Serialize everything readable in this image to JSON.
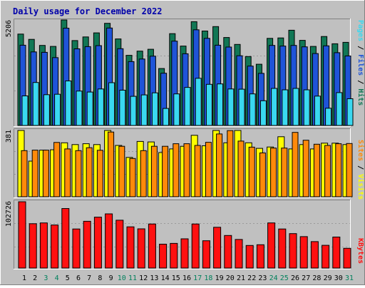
{
  "chart_data": [
    {
      "type": "bar",
      "title": "Daily usage for December 2022",
      "categories": [
        "1",
        "2",
        "3",
        "4",
        "5",
        "6",
        "7",
        "8",
        "9",
        "10",
        "11",
        "12",
        "13",
        "14",
        "15",
        "16",
        "17",
        "18",
        "19",
        "20",
        "21",
        "22",
        "23",
        "24",
        "25",
        "26",
        "27",
        "28",
        "29",
        "30",
        "31"
      ],
      "weekend_days": [
        "3",
        "4",
        "10",
        "11",
        "17",
        "18",
        "24",
        "25",
        "31"
      ],
      "ymax_label": "5206",
      "ylabel": {
        "pages": "Pages",
        "sep1": " / ",
        "files": "Files",
        "sep2": " / ",
        "hits": "Hits"
      },
      "series": [
        {
          "name": "Hits",
          "color": "#117755",
          "values": [
            4510,
            4250,
            3950,
            3900,
            5206,
            4190,
            4370,
            4570,
            5040,
            4270,
            3460,
            3670,
            3760,
            2810,
            4530,
            3920,
            5120,
            4660,
            4880,
            4340,
            4000,
            3400,
            3020,
            4300,
            4320,
            4700,
            4200,
            3900,
            4390,
            4030,
            4100
          ]
        },
        {
          "name": "Files",
          "color": "#1f54d8",
          "values": [
            3960,
            3630,
            3610,
            3350,
            4800,
            3780,
            3890,
            3940,
            4810,
            3790,
            3150,
            3280,
            3420,
            2580,
            4160,
            3540,
            4720,
            4300,
            3960,
            3870,
            3440,
            2930,
            2570,
            3950,
            3920,
            3950,
            3880,
            3550,
            3930,
            3590,
            3430
          ]
        },
        {
          "name": "Pages",
          "color": "#3ad8f0",
          "values": [
            1460,
            2120,
            1520,
            1540,
            2200,
            1700,
            1650,
            1800,
            2110,
            1740,
            1440,
            1510,
            1610,
            840,
            1560,
            1880,
            2330,
            2030,
            2050,
            1800,
            1790,
            1560,
            1220,
            1830,
            1760,
            1830,
            1760,
            1450,
            850,
            1620,
            1320
          ]
        }
      ]
    },
    {
      "type": "bar",
      "ymax_label": "381",
      "ylabel": {
        "sites": "Sites",
        "sep": " / ",
        "visits": "Visits"
      },
      "series": [
        {
          "name": "Visits",
          "color": "#ffff00",
          "values": [
            381,
            205,
            268,
            270,
            310,
            300,
            305,
            300,
            381,
            295,
            226,
            318,
            315,
            254,
            275,
            290,
            353,
            293,
            381,
            310,
            381,
            310,
            278,
            286,
            345,
            275,
            300,
            275,
            308,
            308,
            300
          ]
        },
        {
          "name": "Sites",
          "color": "#ff8a0a",
          "values": [
            265,
            268,
            268,
            312,
            275,
            265,
            282,
            267,
            372,
            290,
            220,
            265,
            290,
            290,
            305,
            305,
            295,
            313,
            361,
            380,
            320,
            285,
            252,
            280,
            280,
            370,
            325,
            302,
            295,
            305,
            306
          ]
        }
      ]
    },
    {
      "type": "bar",
      "ymax_label": "102726",
      "ylabel": {
        "kbytes": "KBytes"
      },
      "series": [
        {
          "name": "KBytes",
          "color": "#ff1010",
          "values": [
            102726,
            68660,
            69920,
            66750,
            92210,
            60480,
            72490,
            78880,
            83960,
            74100,
            63820,
            60700,
            68300,
            37000,
            38240,
            45330,
            68240,
            42330,
            63140,
            50470,
            44340,
            35000,
            36080,
            69950,
            60580,
            53310,
            48740,
            41000,
            35250,
            48080,
            30600
          ]
        }
      ]
    }
  ]
}
